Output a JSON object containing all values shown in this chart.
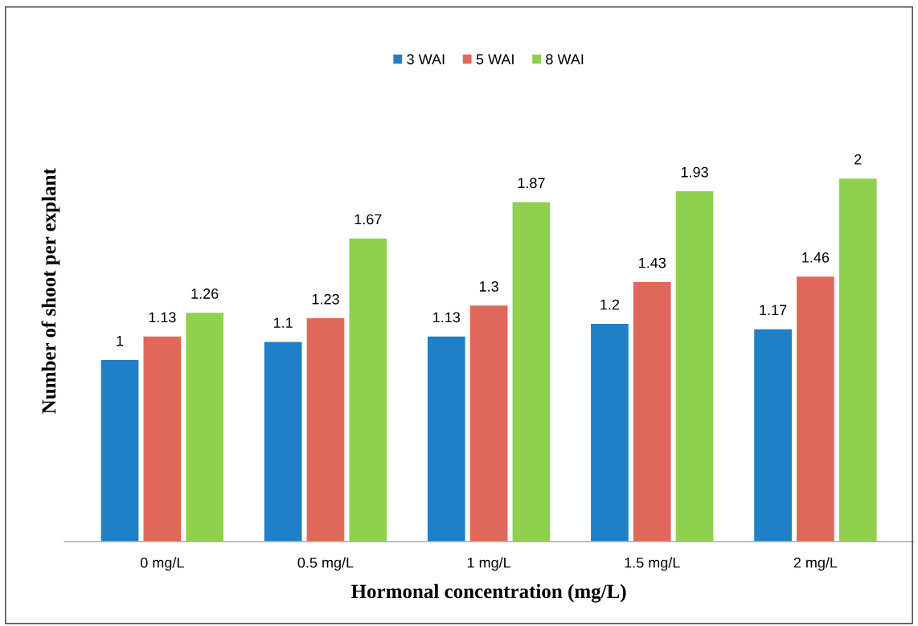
{
  "chart_data": {
    "type": "bar",
    "xlabel": "Hormonal concentration (mg/L)",
    "ylabel": "Number of shoot per explant",
    "categories": [
      "0 mg/L",
      "0.5 mg/L",
      "1 mg/L",
      "1.5 mg/L",
      "2 mg/L"
    ],
    "series": [
      {
        "name": "3 WAI",
        "color": "#1f80c8",
        "values": [
          1,
          1.1,
          1.13,
          1.2,
          1.17
        ]
      },
      {
        "name": "5 WAI",
        "color": "#e0685a",
        "values": [
          1.13,
          1.23,
          1.3,
          1.43,
          1.46
        ]
      },
      {
        "name": "8 WAI",
        "color": "#8fd14f",
        "values": [
          1.26,
          1.67,
          1.87,
          1.93,
          2
        ]
      }
    ],
    "data_labels": true,
    "legend": "top",
    "grid": false,
    "tick_labels": "x"
  }
}
